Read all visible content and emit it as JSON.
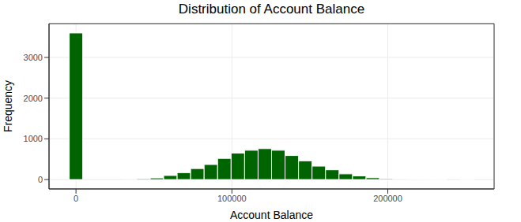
{
  "chart_data": {
    "type": "histogram",
    "title": "Distribution of Account Balance",
    "x_label": "Account Balance",
    "y_label": "Frequency",
    "bins": [
      -4326,
      4326,
      12978,
      21630,
      30282,
      38934,
      47586,
      56238,
      64890,
      73542,
      82194,
      90846,
      99498,
      108150,
      116802,
      125454,
      134106,
      142758,
      151410,
      160062,
      168714,
      177366,
      186018,
      194670,
      203322,
      211974,
      220626,
      229278,
      237930,
      246582,
      255234
    ],
    "values": [
      3600,
      0,
      0,
      0,
      5,
      20,
      40,
      100,
      170,
      270,
      370,
      520,
      650,
      720,
      760,
      720,
      590,
      460,
      330,
      240,
      140,
      90,
      45,
      20,
      8,
      3,
      2,
      1,
      0,
      1
    ],
    "color": "#006400",
    "xlim": [
      -17300,
      268200
    ],
    "ylim": [
      -230,
      3830
    ],
    "xticks": [
      0,
      100000,
      200000
    ],
    "yticks": [
      0,
      1000,
      2000,
      3000
    ],
    "grid": true
  }
}
